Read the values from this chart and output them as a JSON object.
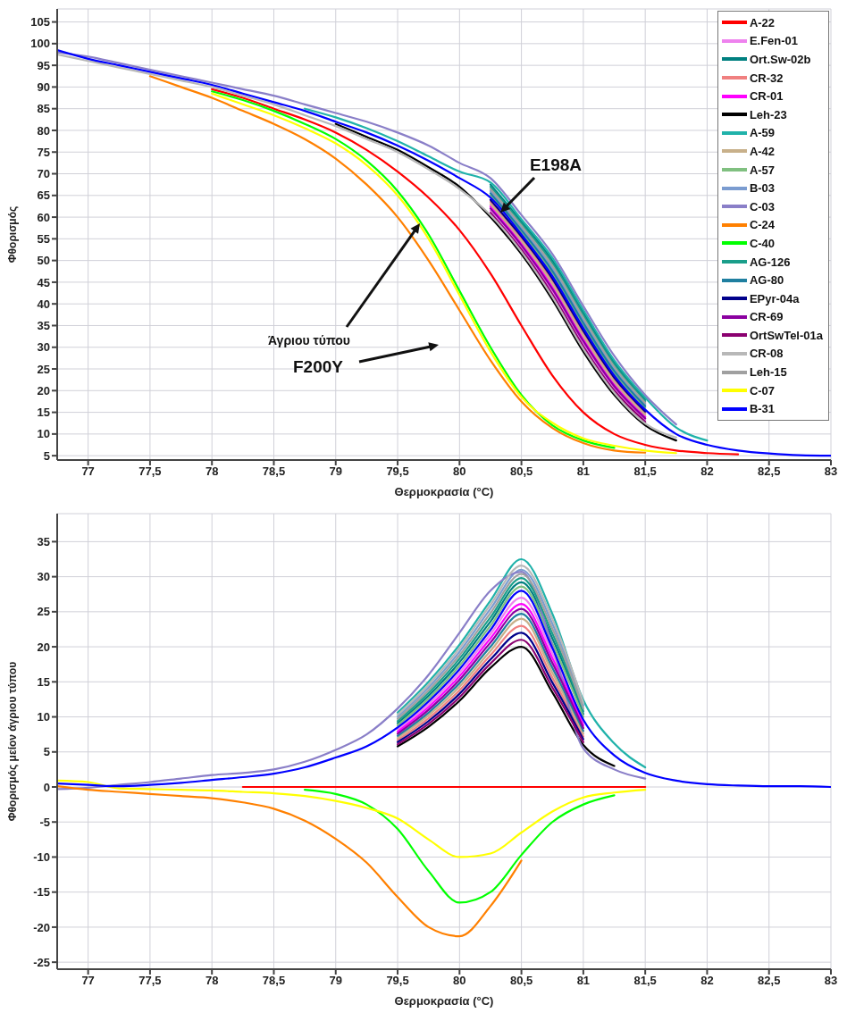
{
  "chart_data": [
    {
      "type": "line",
      "xlabel": "Θερμοκρασία (°C)",
      "ylabel": "Φθορισμός",
      "xlim": [
        76.75,
        83.0
      ],
      "ylim": [
        4,
        108
      ],
      "xticks": [
        77,
        {
          "value": 77.5,
          "label": "77,5"
        },
        78,
        {
          "value": 78.5,
          "label": "78,5"
        },
        79,
        {
          "value": 79.5,
          "label": "79,5"
        },
        80,
        {
          "value": 80.5,
          "label": "80,5"
        },
        81,
        {
          "value": 81.5,
          "label": "81,5"
        },
        82,
        {
          "value": 82.5,
          "label": "82,5"
        },
        83
      ],
      "yticks": [
        5,
        10,
        15,
        20,
        25,
        30,
        35,
        40,
        45,
        50,
        55,
        60,
        65,
        70,
        75,
        80,
        85,
        90,
        95,
        100,
        105
      ],
      "grid": true,
      "legend": "top right",
      "annotations": [
        "E198A",
        "Άγριου τύπου",
        "F200Y"
      ],
      "x": [
        76.75,
        77,
        77.25,
        77.5,
        77.75,
        78,
        78.25,
        78.5,
        78.75,
        79,
        79.25,
        79.5,
        79.75,
        80,
        80.25,
        80.5,
        80.75,
        81,
        81.25,
        81.5,
        81.75,
        82,
        82.25,
        82.5,
        82.75,
        83
      ],
      "series": [
        {
          "name": "A-22",
          "color": "#ff0000",
          "values": [
            null,
            null,
            null,
            null,
            null,
            89.5,
            87.5,
            85,
            82.5,
            79.5,
            75.5,
            70.5,
            64.5,
            57,
            47,
            35,
            23.5,
            15,
            10,
            7.5,
            6.2,
            5.6,
            5.3,
            null,
            null,
            null
          ]
        },
        {
          "name": "E.Fen-01",
          "color": "#ee82ee",
          "values": [
            null,
            null,
            null,
            null,
            null,
            null,
            null,
            null,
            null,
            null,
            null,
            null,
            null,
            null,
            61.5,
            53,
            42.8,
            30.8,
            20.5,
            13.2,
            null,
            null,
            null,
            null,
            null,
            null
          ]
        },
        {
          "name": "Ort.Sw-02b",
          "color": "#008080",
          "values": [
            null,
            null,
            null,
            null,
            null,
            null,
            null,
            null,
            null,
            null,
            null,
            null,
            null,
            null,
            67.5,
            59,
            50,
            38,
            26.5,
            18,
            null,
            null,
            null,
            null,
            null,
            null
          ]
        },
        {
          "name": "CR-32",
          "color": "#f08080",
          "values": [
            null,
            null,
            null,
            null,
            null,
            null,
            null,
            null,
            null,
            null,
            null,
            null,
            null,
            null,
            63.5,
            55,
            45.2,
            33.2,
            22.5,
            14.8,
            null,
            null,
            null,
            null,
            null,
            null
          ]
        },
        {
          "name": "CR-01",
          "color": "#ff00ff",
          "values": [
            null,
            null,
            null,
            null,
            null,
            null,
            null,
            null,
            null,
            null,
            null,
            null,
            null,
            null,
            62.5,
            54,
            44,
            32,
            21.5,
            14,
            null,
            null,
            null,
            null,
            null,
            null
          ]
        },
        {
          "name": "Leh-23",
          "color": "#000000",
          "values": [
            null,
            null,
            null,
            null,
            null,
            null,
            null,
            null,
            null,
            81.5,
            78.5,
            75.5,
            71.5,
            67,
            60,
            51.5,
            41,
            29,
            19,
            12,
            8.5,
            null,
            null,
            null,
            null,
            null
          ]
        },
        {
          "name": "A-59",
          "color": "#20b2aa",
          "values": [
            null,
            null,
            null,
            null,
            null,
            null,
            null,
            null,
            85,
            83,
            80.5,
            77.5,
            74,
            70.5,
            68,
            59.5,
            50.6,
            38.6,
            27,
            18.4,
            11.5,
            8.5,
            null,
            null,
            null,
            null
          ]
        },
        {
          "name": "A-42",
          "color": "#c8b08a",
          "values": [
            null,
            null,
            null,
            null,
            null,
            null,
            null,
            null,
            null,
            null,
            null,
            null,
            null,
            null,
            63,
            54.5,
            44.6,
            32.6,
            22,
            14.4,
            null,
            null,
            null,
            null,
            null,
            null
          ]
        },
        {
          "name": "A-57",
          "color": "#80c080",
          "values": [
            null,
            null,
            null,
            null,
            null,
            null,
            null,
            null,
            null,
            null,
            null,
            null,
            null,
            null,
            65,
            56.5,
            47,
            35,
            24,
            16,
            null,
            null,
            null,
            null,
            null,
            null
          ]
        },
        {
          "name": "B-03",
          "color": "#7b9cd0",
          "values": [
            null,
            null,
            null,
            null,
            null,
            null,
            null,
            null,
            null,
            null,
            null,
            null,
            null,
            null,
            66,
            57.5,
            48.2,
            36.2,
            25,
            16.8,
            null,
            null,
            null,
            null,
            null,
            null
          ]
        },
        {
          "name": "C-03",
          "color": "#8a7fc8",
          "values": [
            98,
            97,
            95.5,
            94,
            92.5,
            91,
            89.5,
            88,
            86,
            84,
            82,
            79.5,
            76.5,
            72.5,
            69,
            60.5,
            51.5,
            39.5,
            28,
            19,
            12.2,
            null,
            null,
            null,
            null,
            null
          ]
        },
        {
          "name": "C-24",
          "color": "#ff8000",
          "values": [
            null,
            null,
            null,
            92.5,
            90,
            87.5,
            84.5,
            81.5,
            78,
            73.5,
            67.5,
            60,
            50,
            38.5,
            27,
            17.5,
            11.4,
            7.9,
            6.2,
            5.7,
            null,
            null,
            null,
            null,
            null,
            null
          ]
        },
        {
          "name": "C-40",
          "color": "#00ff00",
          "values": [
            null,
            null,
            null,
            null,
            null,
            89,
            87,
            84.5,
            81.5,
            78,
            73,
            66,
            56,
            43,
            30,
            19,
            12,
            8.5,
            6.8,
            null,
            null,
            null,
            null,
            null,
            null,
            null
          ]
        },
        {
          "name": "AG-126",
          "color": "#1a9e8a",
          "values": [
            null,
            null,
            null,
            null,
            null,
            null,
            null,
            null,
            null,
            null,
            null,
            null,
            null,
            null,
            67,
            58.5,
            49.4,
            37.4,
            26,
            17.6,
            null,
            null,
            null,
            null,
            null,
            null
          ]
        },
        {
          "name": "AG-80",
          "color": "#1f7fa0",
          "values": [
            null,
            null,
            null,
            null,
            null,
            null,
            null,
            null,
            null,
            null,
            null,
            null,
            null,
            null,
            65.5,
            57,
            47.6,
            35.6,
            24.5,
            16.4,
            null,
            null,
            null,
            null,
            null,
            null
          ]
        },
        {
          "name": "EPyr-04a",
          "color": "#00008b",
          "values": [
            null,
            null,
            null,
            null,
            null,
            null,
            null,
            null,
            null,
            null,
            null,
            null,
            null,
            null,
            64,
            55.5,
            45.8,
            33.8,
            23,
            15.2,
            null,
            null,
            null,
            null,
            null,
            null
          ]
        },
        {
          "name": "CR-69",
          "color": "#8b00a0",
          "values": [
            null,
            null,
            null,
            null,
            null,
            null,
            null,
            null,
            null,
            null,
            null,
            null,
            null,
            null,
            62,
            53.5,
            43.4,
            31.4,
            21,
            13.6,
            null,
            null,
            null,
            null,
            null,
            null
          ]
        },
        {
          "name": "OrtSwTel-01a",
          "color": "#8b0070",
          "values": [
            null,
            null,
            null,
            null,
            null,
            null,
            null,
            null,
            null,
            null,
            null,
            null,
            null,
            null,
            61,
            52.5,
            42.2,
            30.2,
            20,
            12.8,
            null,
            null,
            null,
            null,
            null,
            null
          ]
        },
        {
          "name": "CR-08",
          "color": "#b8b8b8",
          "values": [
            97.5,
            96,
            94.5,
            93,
            91.5,
            90,
            88,
            86,
            83.5,
            81,
            78,
            75,
            71,
            66.5,
            60.5,
            52,
            41.6,
            29.6,
            19.5,
            12.4,
            9.2,
            null,
            null,
            null,
            null,
            null
          ]
        },
        {
          "name": "Leh-15",
          "color": "#a0a0a0",
          "values": [
            null,
            null,
            null,
            null,
            null,
            null,
            null,
            null,
            null,
            null,
            null,
            null,
            null,
            null,
            66.5,
            58,
            48.8,
            36.8,
            25.5,
            17.2,
            null,
            null,
            null,
            null,
            null,
            null
          ]
        },
        {
          "name": "C-07",
          "color": "#ffff00",
          "values": [
            null,
            null,
            null,
            null,
            null,
            88.5,
            86,
            83.5,
            80.5,
            77,
            72,
            65,
            55,
            42,
            29,
            18.5,
            12.6,
            9,
            7.3,
            6.2,
            5.6,
            null,
            null,
            null,
            null,
            null
          ]
        },
        {
          "name": "B-31",
          "color": "#0000ff",
          "values": [
            98.5,
            96.5,
            95,
            93.5,
            92,
            90.5,
            88.5,
            86.5,
            84.5,
            82,
            79.5,
            76.5,
            73,
            69,
            64.5,
            56,
            46.4,
            34.4,
            23.5,
            15.6,
            10,
            7.5,
            6.2,
            5.5,
            5.1,
            5
          ]
        }
      ]
    },
    {
      "type": "line",
      "xlabel": "Θερμοκρασία (°C)",
      "ylabel": "Φθορισμός μείον άγριου τύπου",
      "xlim": [
        76.75,
        83.0
      ],
      "ylim": [
        -26,
        39
      ],
      "xticks": [
        77,
        {
          "value": 77.5,
          "label": "77,5"
        },
        78,
        {
          "value": 78.5,
          "label": "78,5"
        },
        79,
        {
          "value": 79.5,
          "label": "79,5"
        },
        80,
        {
          "value": 80.5,
          "label": "80,5"
        },
        81,
        {
          "value": 81.5,
          "label": "81,5"
        },
        82,
        {
          "value": 82.5,
          "label": "82,5"
        },
        83
      ],
      "yticks": [
        -25,
        -20,
        -15,
        -10,
        -5,
        0,
        5,
        10,
        15,
        20,
        25,
        30,
        35
      ],
      "grid": true,
      "x": [
        76.75,
        77,
        77.25,
        77.5,
        77.75,
        78,
        78.25,
        78.5,
        78.75,
        79,
        79.25,
        79.5,
        79.75,
        80,
        80.25,
        80.5,
        80.75,
        81,
        81.25,
        81.5,
        81.75,
        82,
        82.25,
        82.5,
        82.75,
        83
      ],
      "series": [
        {
          "color": "#ff0000",
          "values": [
            null,
            null,
            null,
            null,
            null,
            null,
            0,
            0,
            0,
            0,
            0,
            0,
            0,
            0,
            0,
            0,
            0,
            0,
            0,
            0,
            null,
            null,
            null,
            null,
            null,
            null
          ]
        },
        {
          "color": "#ee82ee",
          "values": [
            null,
            null,
            null,
            null,
            null,
            null,
            null,
            null,
            null,
            null,
            null,
            8.2,
            11.8,
            16.3,
            21.8,
            27,
            19.1,
            9.2,
            null,
            null,
            null,
            null,
            null,
            null,
            null,
            null
          ]
        },
        {
          "color": "#008080",
          "values": [
            null,
            null,
            null,
            null,
            null,
            null,
            null,
            null,
            null,
            null,
            null,
            9.1,
            13,
            17.8,
            23.6,
            29.2,
            21.2,
            10.4,
            null,
            null,
            null,
            null,
            null,
            null,
            null,
            null
          ]
        },
        {
          "color": "#f08080",
          "values": [
            null,
            null,
            null,
            null,
            null,
            null,
            null,
            null,
            null,
            null,
            null,
            6.7,
            9.8,
            13.8,
            18.8,
            23,
            15.6,
            7.2,
            null,
            null,
            null,
            null,
            null,
            null,
            null,
            null
          ]
        },
        {
          "color": "#ff00ff",
          "values": [
            null,
            null,
            null,
            null,
            null,
            null,
            null,
            null,
            null,
            null,
            null,
            7.9,
            11.4,
            15.8,
            21.2,
            26.1,
            18.4,
            8.8,
            null,
            null,
            null,
            null,
            null,
            null,
            null,
            null
          ]
        },
        {
          "color": "#000000",
          "values": [
            null,
            null,
            null,
            null,
            null,
            null,
            null,
            null,
            null,
            null,
            null,
            5.8,
            8.6,
            12.3,
            17,
            20,
            13.5,
            6,
            3,
            null,
            null,
            null,
            null,
            null,
            null,
            null
          ]
        },
        {
          "color": "#20b2aa",
          "values": [
            null,
            null,
            null,
            null,
            null,
            null,
            null,
            null,
            null,
            null,
            null,
            10.6,
            15,
            20.3,
            26.6,
            32.5,
            24.7,
            12.4,
            6.2,
            2.8,
            null,
            null,
            null,
            null,
            null,
            null
          ]
        },
        {
          "color": "#c8b08a",
          "values": [
            null,
            null,
            null,
            null,
            null,
            null,
            null,
            null,
            null,
            null,
            null,
            7,
            10.2,
            14.3,
            19.4,
            24,
            16.3,
            7.6,
            null,
            null,
            null,
            null,
            null,
            null,
            null,
            null
          ]
        },
        {
          "color": "#80c080",
          "values": [
            null,
            null,
            null,
            null,
            null,
            null,
            null,
            null,
            null,
            null,
            null,
            8.8,
            12.6,
            17.3,
            23,
            28.6,
            20.5,
            10,
            null,
            null,
            null,
            null,
            null,
            null,
            null,
            null
          ]
        },
        {
          "color": "#7b9cd0",
          "values": [
            null,
            null,
            null,
            null,
            null,
            null,
            null,
            null,
            null,
            null,
            null,
            10,
            14.2,
            19.3,
            25.4,
            31,
            23.3,
            11.6,
            null,
            null,
            null,
            null,
            null,
            null,
            null,
            null
          ]
        },
        {
          "color": "#8a7fc8",
          "values": [
            -0.3,
            -0.1,
            0.3,
            0.7,
            1.2,
            1.7,
            2,
            2.5,
            3.6,
            5.3,
            7.5,
            11.2,
            16,
            22,
            28,
            30.7,
            20.2,
            5.5,
            2.5,
            1.2,
            null,
            null,
            null,
            null,
            null,
            null
          ]
        },
        {
          "color": "#ff8000",
          "values": [
            0.1,
            -0.4,
            -0.7,
            -1,
            -1.3,
            -1.6,
            -2.2,
            -3.1,
            -4.8,
            -7.4,
            -10.8,
            -15.7,
            -20,
            -21.3,
            -17,
            -10.5,
            null,
            null,
            null,
            null,
            null,
            null,
            null,
            null,
            null,
            null
          ]
        },
        {
          "color": "#00ff00",
          "values": [
            null,
            null,
            null,
            null,
            null,
            null,
            null,
            null,
            -0.4,
            -1,
            -2.5,
            -6,
            -12,
            -16.5,
            -15,
            -9.7,
            -5,
            -2.5,
            -1.2,
            null,
            null,
            null,
            null,
            null,
            null,
            null
          ]
        },
        {
          "color": "#1a9e8a",
          "values": [
            null,
            null,
            null,
            null,
            null,
            null,
            null,
            null,
            null,
            null,
            null,
            9.4,
            13.4,
            18.3,
            24.2,
            29.8,
            21.9,
            10.8,
            null,
            null,
            null,
            null,
            null,
            null,
            null,
            null
          ]
        },
        {
          "color": "#1f7fa0",
          "values": [
            null,
            null,
            null,
            null,
            null,
            null,
            null,
            null,
            null,
            null,
            null,
            7.3,
            10.6,
            14.8,
            20,
            24.7,
            17,
            8,
            null,
            null,
            null,
            null,
            null,
            null,
            null,
            null
          ]
        },
        {
          "color": "#00008b",
          "values": [
            null,
            null,
            null,
            null,
            null,
            null,
            null,
            null,
            null,
            null,
            null,
            6.4,
            9.4,
            13.3,
            18.2,
            22,
            14.9,
            6.8,
            null,
            null,
            null,
            null,
            null,
            null,
            null,
            null
          ]
        },
        {
          "color": "#8b00a0",
          "values": [
            null,
            null,
            null,
            null,
            null,
            null,
            null,
            null,
            null,
            null,
            null,
            7.6,
            11,
            15.3,
            20.6,
            25.4,
            17.7,
            8.4,
            null,
            null,
            null,
            null,
            null,
            null,
            null,
            null
          ]
        },
        {
          "color": "#8b0070",
          "values": [
            null,
            null,
            null,
            null,
            null,
            null,
            null,
            null,
            null,
            null,
            null,
            6.1,
            9,
            12.8,
            17.6,
            21,
            14.2,
            6.4,
            null,
            null,
            null,
            null,
            null,
            null,
            null,
            null
          ]
        },
        {
          "color": "#b8b8b8",
          "values": [
            null,
            null,
            null,
            null,
            null,
            null,
            null,
            null,
            null,
            null,
            null,
            10.3,
            14.6,
            19.8,
            26,
            31.6,
            24,
            12,
            null,
            null,
            null,
            null,
            null,
            null,
            null,
            null
          ]
        },
        {
          "color": "#a0a0a0",
          "values": [
            null,
            null,
            null,
            null,
            null,
            null,
            null,
            null,
            null,
            null,
            null,
            9.7,
            13.8,
            18.8,
            24.8,
            30.4,
            22.6,
            11.2,
            null,
            null,
            null,
            null,
            null,
            null,
            null,
            null
          ]
        },
        {
          "color": "#ffff00",
          "values": [
            0.9,
            0.7,
            -0.2,
            -0.3,
            -0.4,
            -0.5,
            -0.7,
            -0.9,
            -1.3,
            -2,
            -3,
            -4.5,
            -7.5,
            -10,
            -9.5,
            -6.5,
            -3.5,
            -1.5,
            -0.8,
            -0.4,
            null,
            null,
            null,
            null,
            null,
            null
          ]
        },
        {
          "color": "#0000ff",
          "values": [
            0.5,
            0.3,
            0.1,
            0.3,
            0.6,
            1,
            1.4,
            1.9,
            2.8,
            4.2,
            5.8,
            8.5,
            12.2,
            16.8,
            22.4,
            28,
            19.8,
            9.6,
            4.5,
            2,
            0.9,
            0.4,
            0.2,
            0.1,
            0.1,
            0
          ]
        }
      ]
    }
  ]
}
